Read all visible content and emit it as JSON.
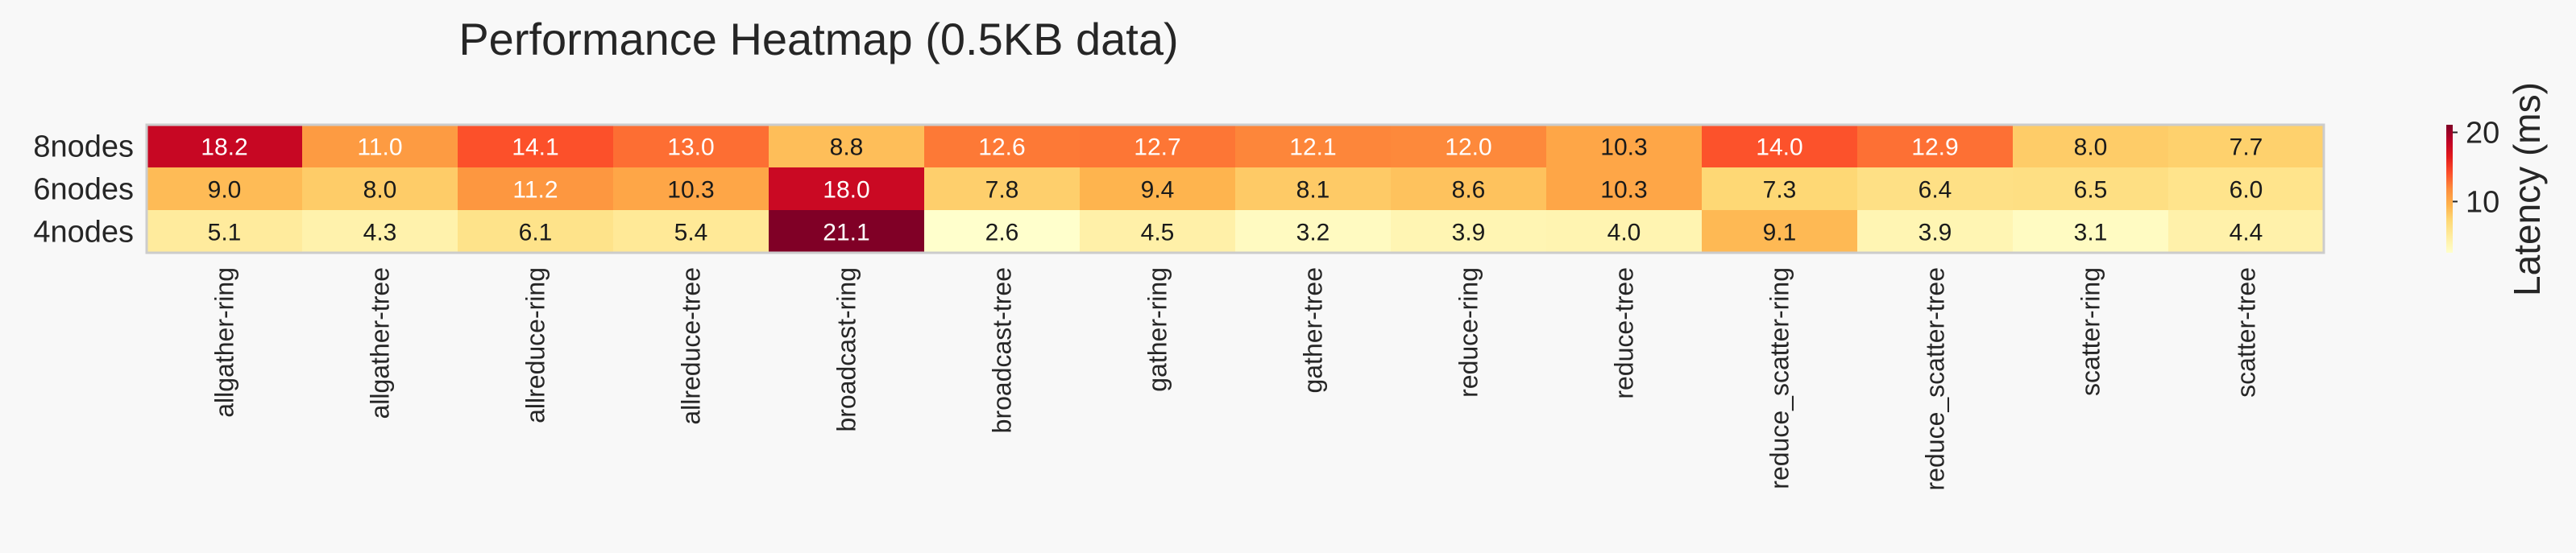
{
  "chart_data": {
    "type": "heatmap",
    "title": "Performance Heatmap (0.5KB data)",
    "rows": [
      "8nodes",
      "6nodes",
      "4nodes"
    ],
    "columns": [
      "allgather-ring",
      "allgather-tree",
      "allreduce-ring",
      "allreduce-tree",
      "broadcast-ring",
      "broadcast-tree",
      "gather-ring",
      "gather-tree",
      "reduce-ring",
      "reduce-tree",
      "reduce_scatter-ring",
      "reduce_scatter-tree",
      "scatter-ring",
      "scatter-tree"
    ],
    "values": [
      [
        18.2,
        11.0,
        14.1,
        13.0,
        8.8,
        12.6,
        12.7,
        12.1,
        12.0,
        10.3,
        14.0,
        12.9,
        8.0,
        7.7
      ],
      [
        9.0,
        8.0,
        11.2,
        10.3,
        18.0,
        7.8,
        9.4,
        8.1,
        8.6,
        10.3,
        7.3,
        6.4,
        6.5,
        6.0
      ],
      [
        5.1,
        4.3,
        6.1,
        5.4,
        21.1,
        2.6,
        4.5,
        3.2,
        3.9,
        4.0,
        9.1,
        3.9,
        3.1,
        4.4
      ]
    ],
    "value_labels": [
      [
        "18.2",
        "11.0",
        "14.1",
        "13.0",
        "8.8",
        "12.6",
        "12.7",
        "12.1",
        "12.0",
        "10.3",
        "14.0",
        "12.9",
        "8.0",
        "7.7"
      ],
      [
        "9.0",
        "8.0",
        "11.2",
        "10.3",
        "18.0",
        "7.8",
        "9.4",
        "8.1",
        "8.6",
        "10.3",
        "7.3",
        "6.4",
        "6.5",
        "6.0"
      ],
      [
        "5.1",
        "4.3",
        "6.1",
        "5.4",
        "21.1",
        "2.6",
        "4.5",
        "3.2",
        "3.9",
        "4.0",
        "9.1",
        "3.9",
        "3.1",
        "4.4"
      ]
    ],
    "colormap": "YlOrRd",
    "colormap_stops": [
      "#ffffcc",
      "#ffeda0",
      "#fed976",
      "#feb24c",
      "#fd8d3c",
      "#fc4e2a",
      "#e31a1c",
      "#bd0026",
      "#800026"
    ],
    "vmin": 2.6,
    "vmax": 21.1,
    "colorbar": {
      "label": "Latency (ms)",
      "ticks": [
        10,
        20
      ],
      "tick_labels": [
        "10",
        "20"
      ]
    },
    "background": "#f8f8f8",
    "frame_color": "#cccccc"
  }
}
